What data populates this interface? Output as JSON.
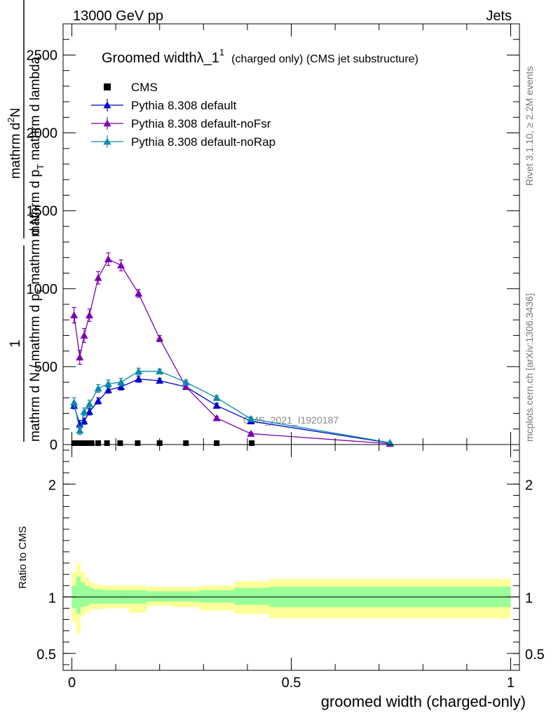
{
  "header": {
    "left": "13000 GeV pp",
    "right": "Jets"
  },
  "side_texts": {
    "rivet": "Rivet 3.1.10, ≥ 2.2M events",
    "mcplots": "mcplots.cern.ch [arXiv:1306.3436]"
  },
  "watermark": "CMS_2021_I1920187",
  "chart_data": {
    "type": "line",
    "title": "Groomed widthλ_1",
    "title_sup": "1",
    "title_suffix": "(charged only) (CMS jet substructure)",
    "xlabel": "groomed width (charged-only)",
    "ylabel_main": {
      "numerator": "1",
      "frac_num": "mathrm d N / mathrm d p",
      "frac_num_sub": "T",
      "frac_num_tail": " mathrm d N",
      "ratio_num": "mathrm d",
      "ratio_num_sup": "2",
      "ratio_num_tail": "N",
      "ratio_den": "mathrm d p",
      "ratio_den_sub": "T",
      "ratio_den_tail": " mathrm d lambda"
    },
    "ylabel_ratio": "Ratio to CMS",
    "xlim": [
      -0.02,
      1.02
    ],
    "ylim": [
      0,
      2700
    ],
    "ratio_ylim": [
      0.35,
      2.35
    ],
    "x_ticks": [
      {
        "value": 0,
        "label": "0"
      },
      {
        "value": 0.5,
        "label": "0.5"
      },
      {
        "value": 1,
        "label": "1"
      }
    ],
    "y_ticks": [
      {
        "value": 0,
        "label": "0"
      },
      {
        "value": 500,
        "label": "500"
      },
      {
        "value": 1000,
        "label": "1000"
      },
      {
        "value": 1500,
        "label": "1500"
      },
      {
        "value": 2000,
        "label": "2000"
      },
      {
        "value": 2500,
        "label": "2500"
      }
    ],
    "ratio_ticks": [
      {
        "value": 0.5,
        "label": "0.5"
      },
      {
        "value": 1,
        "label": "1"
      },
      {
        "value": 2,
        "label": "2"
      }
    ],
    "legend_position": "top-left",
    "series": [
      {
        "name": "CMS",
        "color": "#000000",
        "marker": "square",
        "x": [
          0.005,
          0.015,
          0.025,
          0.035,
          0.045,
          0.06,
          0.08,
          0.11,
          0.15,
          0.2,
          0.26,
          0.33,
          0.41
        ],
        "y": [
          0,
          0,
          0,
          0,
          0,
          0,
          0,
          0,
          0,
          0,
          0,
          0,
          0
        ]
      },
      {
        "name": "Pythia 8.308 default",
        "color": "#0000cc",
        "marker": "triangle",
        "x": [
          0.005,
          0.018,
          0.028,
          0.04,
          0.06,
          0.083,
          0.112,
          0.152,
          0.2,
          0.26,
          0.33,
          0.408,
          0.725
        ],
        "y": [
          250,
          130,
          150,
          210,
          280,
          350,
          370,
          420,
          410,
          370,
          250,
          150,
          10
        ],
        "err": [
          20,
          25,
          20,
          20,
          20,
          20,
          20,
          20,
          15,
          15,
          15,
          12,
          5
        ]
      },
      {
        "name": "Pythia 8.308 default-noFsr",
        "color": "#7a00b4",
        "marker": "triangle",
        "x": [
          0.005,
          0.018,
          0.028,
          0.04,
          0.06,
          0.083,
          0.112,
          0.152,
          0.2,
          0.26,
          0.33,
          0.408,
          0.725
        ],
        "y": [
          830,
          560,
          700,
          830,
          1070,
          1190,
          1150,
          970,
          680,
          370,
          170,
          70,
          5
        ],
        "err": [
          50,
          45,
          45,
          40,
          40,
          40,
          35,
          25,
          20,
          15,
          10,
          8,
          3
        ]
      },
      {
        "name": "Pythia 8.308 default-noRap",
        "color": "#0c8aac",
        "marker": "triangle",
        "x": [
          0.005,
          0.018,
          0.028,
          0.04,
          0.06,
          0.083,
          0.112,
          0.152,
          0.2,
          0.26,
          0.33,
          0.408,
          0.725
        ],
        "y": [
          270,
          90,
          210,
          260,
          360,
          390,
          400,
          470,
          470,
          400,
          300,
          165,
          12
        ],
        "err": [
          30,
          25,
          25,
          25,
          25,
          25,
          25,
          20,
          15,
          15,
          15,
          12,
          5
        ]
      }
    ],
    "ratio_bands": [
      {
        "x0": 0.0,
        "x1": 0.01,
        "inner": [
          0.9,
          1.1
        ],
        "outer": [
          0.78,
          1.22
        ]
      },
      {
        "x0": 0.01,
        "x1": 0.02,
        "inner": [
          0.85,
          1.18
        ],
        "outer": [
          0.68,
          1.3
        ]
      },
      {
        "x0": 0.02,
        "x1": 0.03,
        "inner": [
          0.91,
          1.13
        ],
        "outer": [
          0.83,
          1.22
        ]
      },
      {
        "x0": 0.03,
        "x1": 0.04,
        "inner": [
          0.92,
          1.1
        ],
        "outer": [
          0.86,
          1.17
        ]
      },
      {
        "x0": 0.04,
        "x1": 0.05,
        "inner": [
          0.94,
          1.08
        ],
        "outer": [
          0.89,
          1.13
        ]
      },
      {
        "x0": 0.05,
        "x1": 0.07,
        "inner": [
          0.94,
          1.07
        ],
        "outer": [
          0.89,
          1.11
        ]
      },
      {
        "x0": 0.07,
        "x1": 0.13,
        "inner": [
          0.94,
          1.06
        ],
        "outer": [
          0.9,
          1.1
        ]
      },
      {
        "x0": 0.13,
        "x1": 0.17,
        "inner": [
          0.94,
          1.06
        ],
        "outer": [
          0.86,
          1.1
        ]
      },
      {
        "x0": 0.17,
        "x1": 0.23,
        "inner": [
          0.96,
          1.05
        ],
        "outer": [
          0.92,
          1.09
        ]
      },
      {
        "x0": 0.23,
        "x1": 0.29,
        "inner": [
          0.96,
          1.05
        ],
        "outer": [
          0.91,
          1.09
        ]
      },
      {
        "x0": 0.29,
        "x1": 0.37,
        "inner": [
          0.95,
          1.06
        ],
        "outer": [
          0.88,
          1.1
        ]
      },
      {
        "x0": 0.37,
        "x1": 0.45,
        "inner": [
          0.93,
          1.08
        ],
        "outer": [
          0.85,
          1.14
        ]
      },
      {
        "x0": 0.45,
        "x1": 1.0,
        "inner": [
          0.91,
          1.09
        ],
        "outer": [
          0.81,
          1.16
        ]
      }
    ]
  }
}
